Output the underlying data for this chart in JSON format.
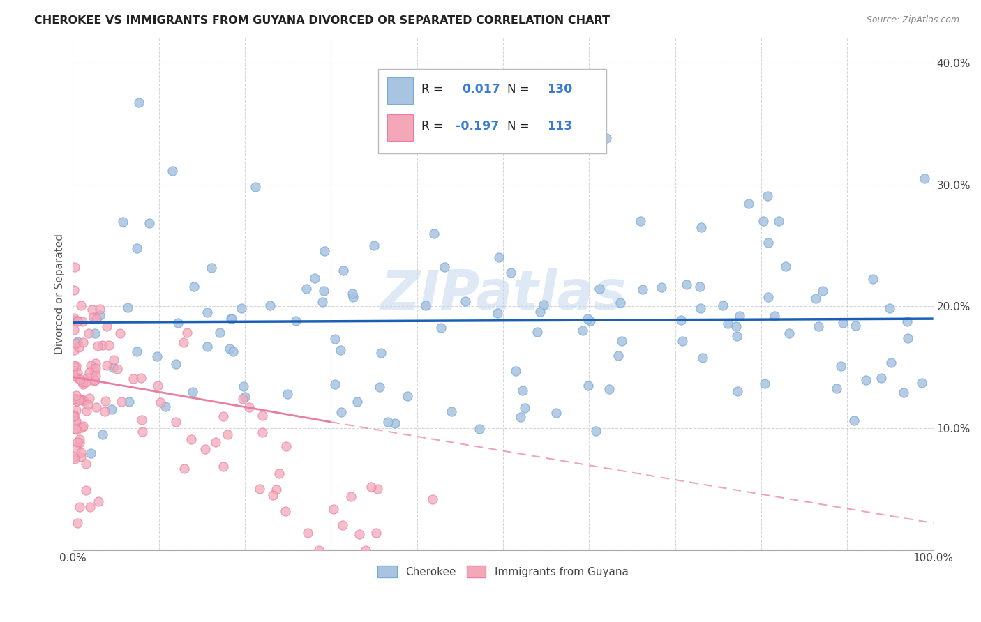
{
  "title": "CHEROKEE VS IMMIGRANTS FROM GUYANA DIVORCED OR SEPARATED CORRELATION CHART",
  "source": "Source: ZipAtlas.com",
  "ylabel": "Divorced or Separated",
  "xlim": [
    0.0,
    1.0
  ],
  "ylim": [
    0.0,
    0.42
  ],
  "blue_R": "0.017",
  "blue_N": "130",
  "pink_R": "-0.197",
  "pink_N": "113",
  "blue_dot_color": "#a8c4e0",
  "blue_dot_edge": "#7aacda",
  "pink_dot_color": "#f4a7b9",
  "pink_dot_edge": "#e87fa0",
  "blue_line_color": "#1a5fb4",
  "pink_line_color": "#e87fa0",
  "legend_text_color": "#3a7bd5",
  "watermark": "ZIPatlas",
  "legend_blue_label": "Cherokee",
  "legend_pink_label": "Immigrants from Guyana",
  "blue_seed": 42,
  "pink_seed": 99
}
